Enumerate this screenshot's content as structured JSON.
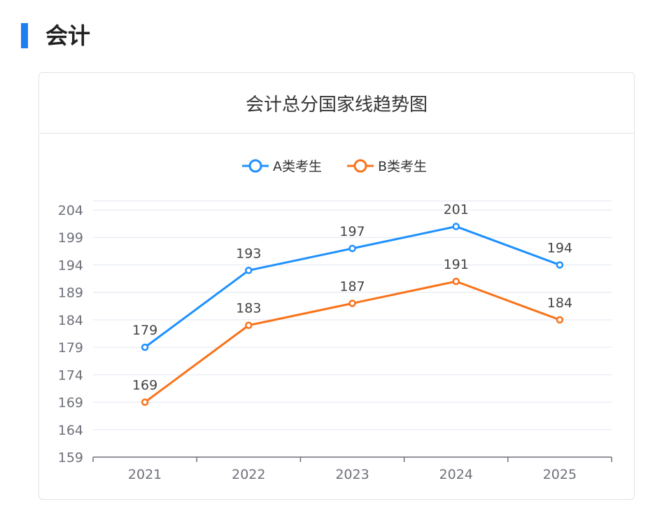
{
  "section": {
    "title": "会计"
  },
  "colors": {
    "accent": "#1e7ff0",
    "series_a": "#1e90ff",
    "series_b": "#fa7219",
    "grid": "#e0e6f1",
    "axis": "#6e7079",
    "tick_label": "#6e7079",
    "data_label": "#444444"
  },
  "chart_data": {
    "type": "line",
    "title": "会计总分国家线趋势图",
    "xlabel": "",
    "ylabel": "",
    "categories": [
      "2021",
      "2022",
      "2023",
      "2024",
      "2025"
    ],
    "series": [
      {
        "name": "A类考生",
        "values": [
          179,
          193,
          197,
          201,
          194
        ],
        "color": "#1e90ff"
      },
      {
        "name": "B类考生",
        "values": [
          169,
          183,
          187,
          191,
          184
        ],
        "color": "#fa7219"
      }
    ],
    "ylim": [
      159,
      204
    ],
    "yticks": [
      159,
      164,
      169,
      174,
      179,
      184,
      189,
      194,
      199,
      204
    ],
    "grid": true,
    "legend": "top-center",
    "data_labels": true
  }
}
